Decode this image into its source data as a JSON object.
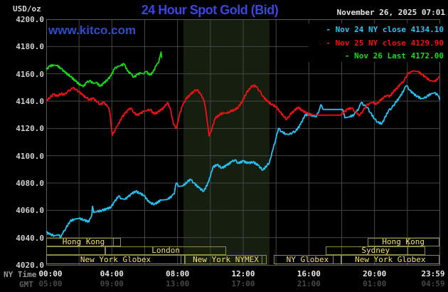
{
  "header": {
    "unit_label": "USD/oz",
    "title": "24 Hour Spot Gold (Bid)",
    "datetime": "November 26, 2025 07:01",
    "watermark": "www.kitco.com"
  },
  "axis_captions": {
    "ny_time": "NY Time",
    "gmt": "GMT"
  },
  "legend": [
    {
      "dash": "-",
      "label": "Nov 24 NY close 4134.10",
      "color": "#27c3f2"
    },
    {
      "dash": "-",
      "label": "Nov 25 NY close 4129.90",
      "color": "#f01212"
    },
    {
      "dash": "-",
      "label": "Nov 26 Last 4172.00",
      "color": "#15dd15"
    }
  ],
  "chart_data": {
    "type": "line",
    "title": "24 Hour Spot Gold (Bid)",
    "ylabel": "USD/oz",
    "ylim": [
      4020,
      4200
    ],
    "y_ticks": [
      4200,
      4180,
      4160,
      4140,
      4120,
      4100,
      4080,
      4060,
      4040,
      4020
    ],
    "x_ticks": [
      {
        "h": 0,
        "ny": "00:00",
        "gmt": "05:00"
      },
      {
        "h": 4,
        "ny": "04:00",
        "gmt": "09:00"
      },
      {
        "h": 8,
        "ny": "08:00",
        "gmt": "13:00"
      },
      {
        "h": 12,
        "ny": "12:00",
        "gmt": "17:00"
      },
      {
        "h": 16,
        "ny": "16:00",
        "gmt": "21:00"
      },
      {
        "h": 20,
        "ny": "20:00",
        "gmt": "01:00"
      },
      {
        "h": 23.98,
        "ny": "23:59",
        "gmt": "04:59"
      }
    ],
    "grid": {
      "x_step_hours": 2,
      "color": "#464646"
    },
    "nymex_band": {
      "start_h": 8.36,
      "end_h": 13.6,
      "color": "#161e10"
    },
    "series": [
      {
        "name": "Nov 24",
        "close": 4134.1,
        "color": "#27c3f2",
        "points": [
          [
            0.0,
            4044
          ],
          [
            0.2,
            4042.5
          ],
          [
            0.5,
            4041.5
          ],
          [
            0.8,
            4042
          ],
          [
            0.87,
            4039.5
          ],
          [
            1.0,
            4043
          ],
          [
            1.2,
            4047
          ],
          [
            1.45,
            4052
          ],
          [
            1.7,
            4053.5
          ],
          [
            2.0,
            4054
          ],
          [
            2.3,
            4053
          ],
          [
            2.6,
            4051.5
          ],
          [
            2.78,
            4057
          ],
          [
            2.82,
            4063
          ],
          [
            2.9,
            4058.5
          ],
          [
            3.1,
            4059
          ],
          [
            3.4,
            4060
          ],
          [
            3.7,
            4061
          ],
          [
            3.95,
            4062.5
          ],
          [
            4.15,
            4066
          ],
          [
            4.4,
            4070.5
          ],
          [
            4.6,
            4068.5
          ],
          [
            4.8,
            4068
          ],
          [
            5.0,
            4070
          ],
          [
            5.2,
            4072
          ],
          [
            5.45,
            4074
          ],
          [
            5.7,
            4072.5
          ],
          [
            5.95,
            4071
          ],
          [
            6.3,
            4065.5
          ],
          [
            6.6,
            4064.5
          ],
          [
            7.0,
            4067.5
          ],
          [
            7.4,
            4068
          ],
          [
            7.65,
            4070.5
          ],
          [
            7.8,
            4072
          ],
          [
            7.92,
            4080
          ],
          [
            8.1,
            4077.5
          ],
          [
            8.35,
            4078
          ],
          [
            8.6,
            4081
          ],
          [
            8.8,
            4082.5
          ],
          [
            9.0,
            4080
          ],
          [
            9.3,
            4076.5
          ],
          [
            9.6,
            4074
          ],
          [
            9.9,
            4081
          ],
          [
            10.15,
            4091.5
          ],
          [
            10.4,
            4093.5
          ],
          [
            10.7,
            4091
          ],
          [
            11.0,
            4093
          ],
          [
            11.3,
            4095.5
          ],
          [
            11.5,
            4097
          ],
          [
            11.7,
            4094.5
          ],
          [
            12.0,
            4096
          ],
          [
            12.3,
            4094.5
          ],
          [
            12.6,
            4095.5
          ],
          [
            12.9,
            4093
          ],
          [
            13.2,
            4089.5
          ],
          [
            13.45,
            4093
          ],
          [
            13.6,
            4095
          ],
          [
            13.8,
            4104
          ],
          [
            14.0,
            4113
          ],
          [
            14.15,
            4120
          ],
          [
            14.35,
            4117.5
          ],
          [
            14.6,
            4116
          ],
          [
            14.8,
            4115.5
          ],
          [
            15.0,
            4117
          ],
          [
            15.2,
            4118
          ],
          [
            15.5,
            4123
          ],
          [
            15.75,
            4129.5
          ],
          [
            16.0,
            4130.5
          ],
          [
            16.3,
            4129
          ],
          [
            16.45,
            4128.5
          ],
          [
            16.65,
            4134
          ],
          [
            16.72,
            4137.3
          ],
          [
            16.9,
            4133.9
          ],
          [
            18.05,
            4133.9
          ],
          [
            18.2,
            4127.8
          ],
          [
            18.5,
            4128.5
          ],
          [
            18.75,
            4130
          ],
          [
            18.9,
            4132
          ],
          [
            19.05,
            4135
          ],
          [
            19.2,
            4139
          ],
          [
            19.35,
            4137
          ],
          [
            19.55,
            4135.5
          ],
          [
            19.75,
            4131.5
          ],
          [
            20.0,
            4127
          ],
          [
            20.2,
            4124.5
          ],
          [
            20.45,
            4123.5
          ],
          [
            20.6,
            4127
          ],
          [
            20.85,
            4133
          ],
          [
            21.05,
            4135
          ],
          [
            21.25,
            4138.5
          ],
          [
            21.55,
            4143
          ],
          [
            21.8,
            4148.5
          ],
          [
            21.95,
            4151.3
          ],
          [
            22.15,
            4148
          ],
          [
            22.35,
            4145.5
          ],
          [
            22.6,
            4143.5
          ],
          [
            22.85,
            4142
          ],
          [
            23.0,
            4142
          ],
          [
            23.2,
            4143.5
          ],
          [
            23.45,
            4145.5
          ],
          [
            23.65,
            4146
          ],
          [
            23.85,
            4144.5
          ],
          [
            23.98,
            4141
          ]
        ]
      },
      {
        "name": "Nov 25",
        "close": 4129.9,
        "color": "#f01212",
        "points": [
          [
            0.0,
            4140
          ],
          [
            0.25,
            4143
          ],
          [
            0.45,
            4145
          ],
          [
            0.65,
            4143.5
          ],
          [
            0.9,
            4145.5
          ],
          [
            1.1,
            4144.5
          ],
          [
            1.3,
            4147
          ],
          [
            1.5,
            4148.5
          ],
          [
            1.65,
            4149.6
          ],
          [
            1.8,
            4148.5
          ],
          [
            2.0,
            4147
          ],
          [
            2.2,
            4144.5
          ],
          [
            2.45,
            4142.5
          ],
          [
            2.65,
            4141
          ],
          [
            2.85,
            4142
          ],
          [
            3.1,
            4139.5
          ],
          [
            3.3,
            4137.5
          ],
          [
            3.5,
            4139
          ],
          [
            3.7,
            4136.5
          ],
          [
            3.85,
            4133.5
          ],
          [
            4.03,
            4115
          ],
          [
            4.2,
            4119
          ],
          [
            4.35,
            4122
          ],
          [
            4.6,
            4128
          ],
          [
            4.8,
            4131
          ],
          [
            5.0,
            4133.5
          ],
          [
            5.15,
            4135
          ],
          [
            5.35,
            4131.5
          ],
          [
            5.55,
            4129.6
          ],
          [
            5.75,
            4131
          ],
          [
            5.95,
            4132.5
          ],
          [
            6.15,
            4133
          ],
          [
            6.35,
            4134
          ],
          [
            6.55,
            4130.5
          ],
          [
            6.8,
            4132
          ],
          [
            7.0,
            4133.5
          ],
          [
            7.2,
            4135.5
          ],
          [
            7.38,
            4139
          ],
          [
            7.55,
            4135
          ],
          [
            7.75,
            4123
          ],
          [
            7.94,
            4120
          ],
          [
            8.1,
            4129.5
          ],
          [
            8.3,
            4136.5
          ],
          [
            8.5,
            4141.5
          ],
          [
            8.75,
            4144.5
          ],
          [
            9.0,
            4147.3
          ],
          [
            9.2,
            4148.4
          ],
          [
            9.4,
            4145
          ],
          [
            9.55,
            4142.5
          ],
          [
            9.68,
            4136.5
          ],
          [
            9.8,
            4126
          ],
          [
            9.92,
            4114.5
          ],
          [
            10.1,
            4120
          ],
          [
            10.3,
            4127.5
          ],
          [
            10.55,
            4130
          ],
          [
            10.8,
            4131.5
          ],
          [
            11.0,
            4131
          ],
          [
            11.2,
            4132.5
          ],
          [
            11.45,
            4133.5
          ],
          [
            11.7,
            4135.5
          ],
          [
            11.95,
            4140
          ],
          [
            12.2,
            4146
          ],
          [
            12.45,
            4150
          ],
          [
            12.6,
            4151.5
          ],
          [
            12.8,
            4150.5
          ],
          [
            13.0,
            4147.5
          ],
          [
            13.2,
            4143.5
          ],
          [
            13.5,
            4139.5
          ],
          [
            13.75,
            4137.5
          ],
          [
            14.0,
            4136
          ],
          [
            14.25,
            4132
          ],
          [
            14.5,
            4128.5
          ],
          [
            14.65,
            4126.5
          ],
          [
            14.85,
            4130
          ],
          [
            15.1,
            4133
          ],
          [
            15.35,
            4135.5
          ],
          [
            15.6,
            4133
          ],
          [
            15.85,
            4131.5
          ],
          [
            16.1,
            4130
          ],
          [
            16.4,
            4129.8
          ],
          [
            17.95,
            4129.8
          ],
          [
            18.15,
            4132
          ],
          [
            18.35,
            4134
          ],
          [
            18.6,
            4135
          ],
          [
            18.8,
            4132.5
          ],
          [
            18.95,
            4130.5
          ],
          [
            19.1,
            4129.6
          ],
          [
            19.3,
            4133
          ],
          [
            19.5,
            4136.5
          ],
          [
            19.7,
            4138.5
          ],
          [
            19.9,
            4139
          ],
          [
            20.1,
            4137.5
          ],
          [
            20.3,
            4140
          ],
          [
            20.55,
            4142.6
          ],
          [
            20.75,
            4144.3
          ],
          [
            20.9,
            4143
          ],
          [
            21.15,
            4147
          ],
          [
            21.4,
            4150
          ],
          [
            21.6,
            4152.5
          ],
          [
            21.8,
            4155
          ],
          [
            22.0,
            4159.5
          ],
          [
            22.2,
            4161.5
          ],
          [
            22.4,
            4162.2
          ],
          [
            22.65,
            4161.5
          ],
          [
            22.9,
            4159.5
          ],
          [
            23.1,
            4157.5
          ],
          [
            23.4,
            4155
          ],
          [
            23.65,
            4154.4
          ],
          [
            23.85,
            4156
          ],
          [
            23.98,
            4158
          ]
        ]
      },
      {
        "name": "Nov 26",
        "last": 4172.0,
        "color": "#15dd15",
        "points": [
          [
            0.0,
            4163
          ],
          [
            0.2,
            4165.5
          ],
          [
            0.45,
            4166.5
          ],
          [
            0.65,
            4166
          ],
          [
            0.9,
            4164
          ],
          [
            1.15,
            4161
          ],
          [
            1.5,
            4158
          ],
          [
            1.8,
            4154.5
          ],
          [
            2.1,
            4151.5
          ],
          [
            2.25,
            4150.5
          ],
          [
            2.45,
            4153.5
          ],
          [
            2.65,
            4155
          ],
          [
            2.85,
            4153
          ],
          [
            3.05,
            4153.5
          ],
          [
            3.3,
            4151
          ],
          [
            3.5,
            4153
          ],
          [
            3.75,
            4156
          ],
          [
            3.95,
            4158.5
          ],
          [
            4.15,
            4163.5
          ],
          [
            4.35,
            4165.5
          ],
          [
            4.55,
            4166
          ],
          [
            4.75,
            4167.2
          ],
          [
            4.95,
            4162
          ],
          [
            5.15,
            4160
          ],
          [
            5.35,
            4157.5
          ],
          [
            5.55,
            4159.5
          ],
          [
            5.75,
            4160.5
          ],
          [
            5.95,
            4160
          ],
          [
            6.1,
            4161.7
          ],
          [
            6.3,
            4159
          ],
          [
            6.5,
            4161
          ],
          [
            6.7,
            4166
          ],
          [
            6.85,
            4168
          ],
          [
            6.95,
            4173.5
          ],
          [
            7.0,
            4176
          ],
          [
            7.03,
            4172
          ]
        ]
      }
    ],
    "sessions": [
      {
        "row": 0,
        "boxes": [
          {
            "label": "Hong Kong",
            "start": 0,
            "end": 4.55,
            "div": 4.04
          },
          {
            "label": "Hong Kong",
            "start": 19.57,
            "end": 23.94,
            "div": 22.02
          }
        ]
      },
      {
        "row": 1,
        "boxes": [
          {
            "label": "",
            "start": 0,
            "end": 3.6
          },
          {
            "label": "London",
            "start": 3.6,
            "end": 10.97
          },
          {
            "label": "Sydney",
            "start": 17.04,
            "end": 23.1,
            "div": 21.95
          }
        ]
      },
      {
        "row": 2,
        "boxes": [
          {
            "label": "New York Globex",
            "start": 0,
            "end": 8.45,
            "div": 8.16
          },
          {
            "label": "New York NYMEX",
            "start": 8.45,
            "end": 13.43,
            "div": 13.07
          },
          {
            "label": "NY Globex",
            "start": 13.86,
            "end": 17.98,
            "div": 17.4
          },
          {
            "label": "New York Globex",
            "start": 17.98,
            "end": 23.94
          }
        ]
      }
    ]
  }
}
